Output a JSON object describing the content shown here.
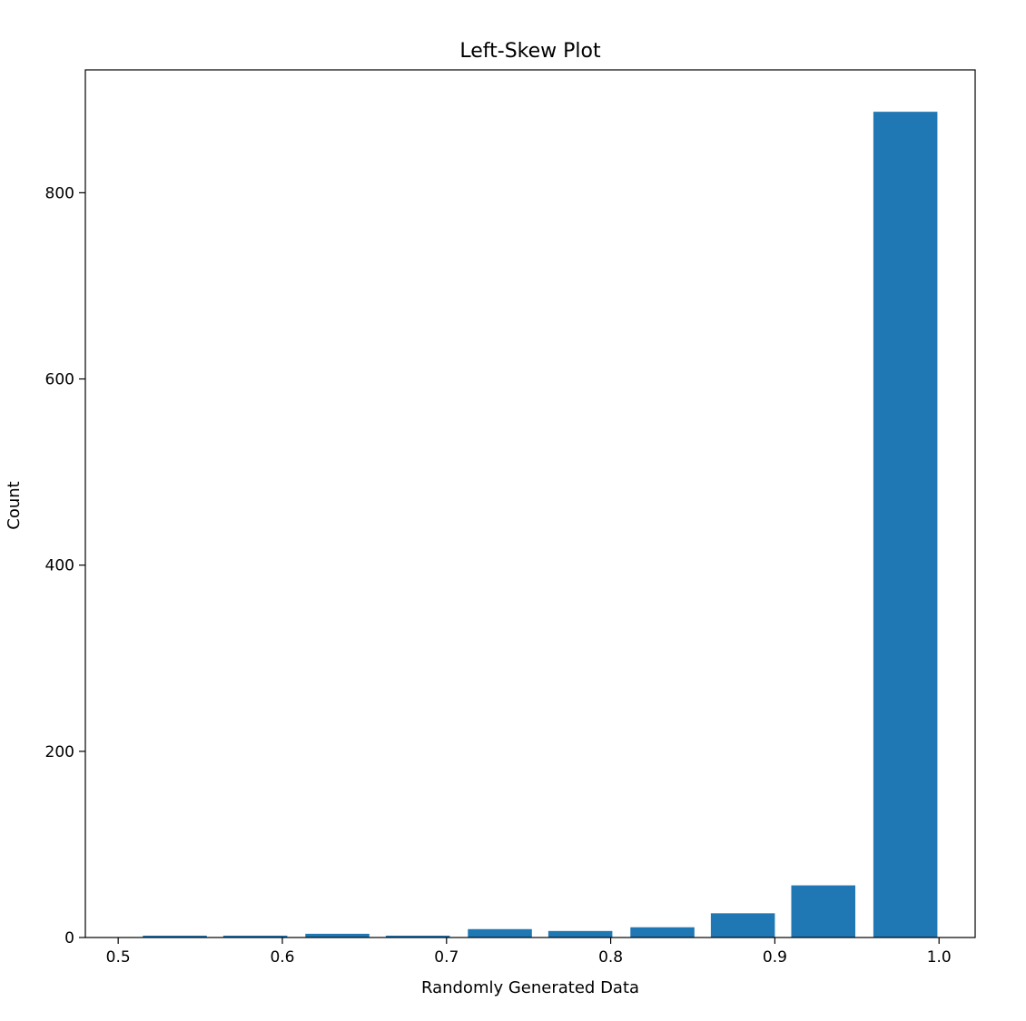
{
  "chart_data": {
    "type": "bar",
    "title": "Left-Skew Plot",
    "xlabel": "Randomly Generated Data",
    "ylabel": "Count",
    "xlim": [
      0.48,
      1.022
    ],
    "ylim": [
      0,
      932
    ],
    "xticks": [
      0.5,
      0.6,
      0.7,
      0.8,
      0.9,
      1.0
    ],
    "xtick_labels": [
      "0.5",
      "0.6",
      "0.7",
      "0.8",
      "0.9",
      "1.0"
    ],
    "yticks": [
      0,
      200,
      400,
      600,
      800
    ],
    "ytick_labels": [
      "0",
      "200",
      "400",
      "600",
      "800"
    ],
    "bar_width": 0.039,
    "bar_color": "#1f77b4",
    "grid": false,
    "bins": [
      {
        "x": 0.5345,
        "value": 2
      },
      {
        "x": 0.5835,
        "value": 2
      },
      {
        "x": 0.6335,
        "value": 4
      },
      {
        "x": 0.6825,
        "value": 2
      },
      {
        "x": 0.7325,
        "value": 9
      },
      {
        "x": 0.7815,
        "value": 7
      },
      {
        "x": 0.8315,
        "value": 11
      },
      {
        "x": 0.8805,
        "value": 26
      },
      {
        "x": 0.9295,
        "value": 56
      },
      {
        "x": 0.9795,
        "value": 887
      }
    ]
  }
}
